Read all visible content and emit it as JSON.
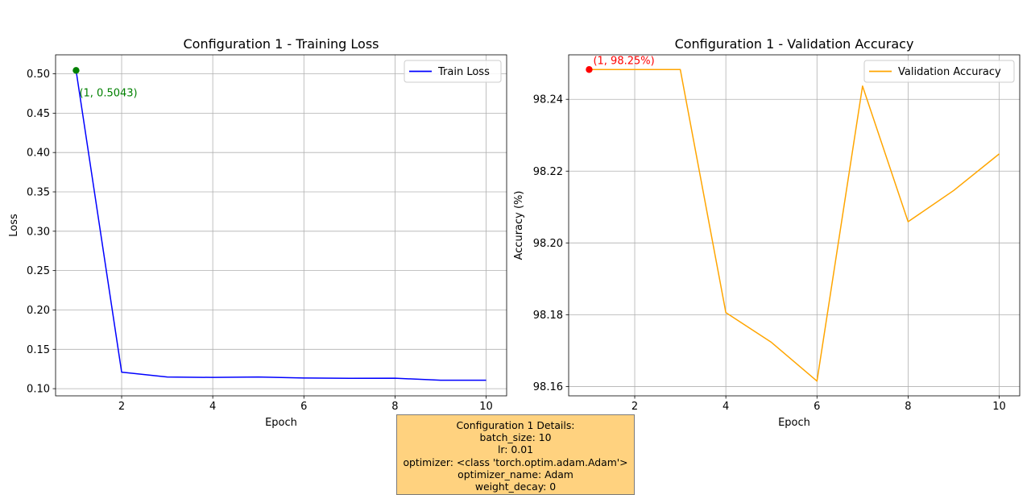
{
  "colors": {
    "loss_line": "#0000ff",
    "loss_marker": "#008000",
    "acc_line": "#ffa500",
    "acc_marker": "#ff0000",
    "details_bg": "#ffd27f"
  },
  "chart_data": [
    {
      "type": "line",
      "title": "Configuration 1 - Training Loss",
      "xlabel": "Epoch",
      "ylabel": "Loss",
      "x": [
        1,
        2,
        3,
        4,
        5,
        6,
        7,
        8,
        9,
        10
      ],
      "series": [
        {
          "name": "Train Loss",
          "values": [
            0.5043,
            0.121,
            0.1148,
            0.1143,
            0.1148,
            0.1136,
            0.1132,
            0.1133,
            0.1107,
            0.1107
          ]
        }
      ],
      "xticks": [
        2,
        4,
        6,
        8,
        10
      ],
      "xtick_labels": [
        "2",
        "4",
        "6",
        "8",
        "10"
      ],
      "yticks": [
        0.1,
        0.15,
        0.2,
        0.25,
        0.3,
        0.35,
        0.4,
        0.45,
        0.5
      ],
      "ytick_labels": [
        "0.10",
        "0.15",
        "0.20",
        "0.25",
        "0.30",
        "0.35",
        "0.40",
        "0.45",
        "0.50"
      ],
      "xlim": [
        0.55,
        10.45
      ],
      "ylim": [
        0.0909,
        0.5241
      ],
      "grid": true,
      "legend": "top-right",
      "annotation": {
        "x": 1,
        "y": 0.5043,
        "text": "(1, 0.5043)"
      }
    },
    {
      "type": "line",
      "title": "Configuration 1 - Validation Accuracy",
      "xlabel": "Epoch",
      "ylabel": "Accuracy (%)",
      "x": [
        1,
        2,
        3,
        4,
        5,
        6,
        7,
        8,
        9,
        10
      ],
      "series": [
        {
          "name": "Validation Accuracy",
          "values": [
            98.2483,
            98.2483,
            98.2483,
            98.1806,
            98.1723,
            98.1615,
            98.2437,
            98.2059,
            98.2146,
            98.2248
          ]
        }
      ],
      "xticks": [
        2,
        4,
        6,
        8,
        10
      ],
      "xtick_labels": [
        "2",
        "4",
        "6",
        "8",
        "10"
      ],
      "yticks": [
        98.16,
        98.18,
        98.2,
        98.22,
        98.24
      ],
      "ytick_labels": [
        "98.16",
        "98.18",
        "98.20",
        "98.22",
        "98.24"
      ],
      "xlim": [
        0.55,
        10.45
      ],
      "ylim": [
        98.1574,
        98.2524
      ],
      "grid": true,
      "legend": "top-right",
      "annotation": {
        "x": 1,
        "y": 98.2483,
        "text": "(1, 98.25%)"
      }
    }
  ],
  "details": {
    "lines": [
      "Configuration 1 Details:",
      "batch_size: 10",
      "lr: 0.01",
      "optimizer: <class 'torch.optim.adam.Adam'>",
      "optimizer_name: Adam",
      "weight_decay: 0"
    ]
  }
}
